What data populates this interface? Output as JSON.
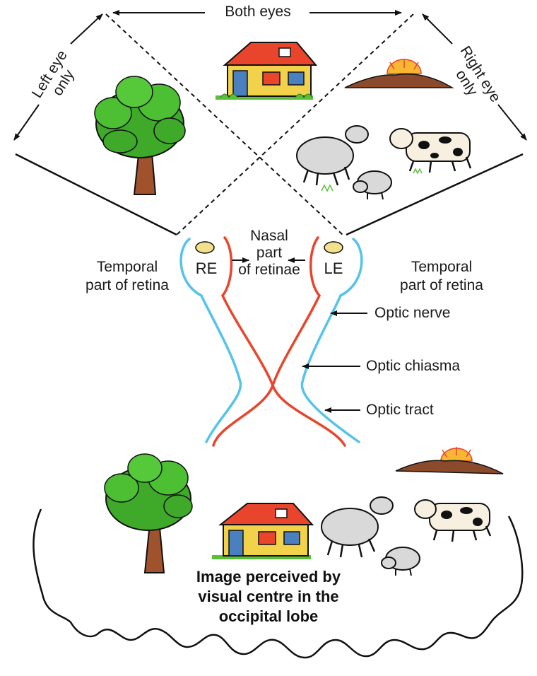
{
  "labels": {
    "both_eyes": "Both eyes",
    "left_eye_only": [
      "Left eye",
      "only"
    ],
    "right_eye_only": [
      "Right eye",
      "only"
    ],
    "nasal_part": [
      "Nasal",
      "part",
      "of retinae"
    ],
    "temporal_left": [
      "Temporal",
      "part of retina"
    ],
    "temporal_right": [
      "Temporal",
      "part of retina"
    ],
    "re": "RE",
    "le": "LE",
    "optic_nerve": "Optic nerve",
    "optic_chiasma": "Optic chiasma",
    "optic_tract": "Optic tract",
    "perceived": [
      "Image perceived by",
      "visual centre in the",
      "occipital lobe"
    ]
  },
  "colors": {
    "temporal_fibers": "#55c3ea",
    "nasal_fibers": "#e8452c",
    "tree_leaves": "#3faa2a",
    "tree_trunk": "#a0522d",
    "lens": "#f3e08a"
  },
  "icons": [
    "tree",
    "house",
    "sunset-hill",
    "sheep",
    "cow",
    "lamb"
  ]
}
